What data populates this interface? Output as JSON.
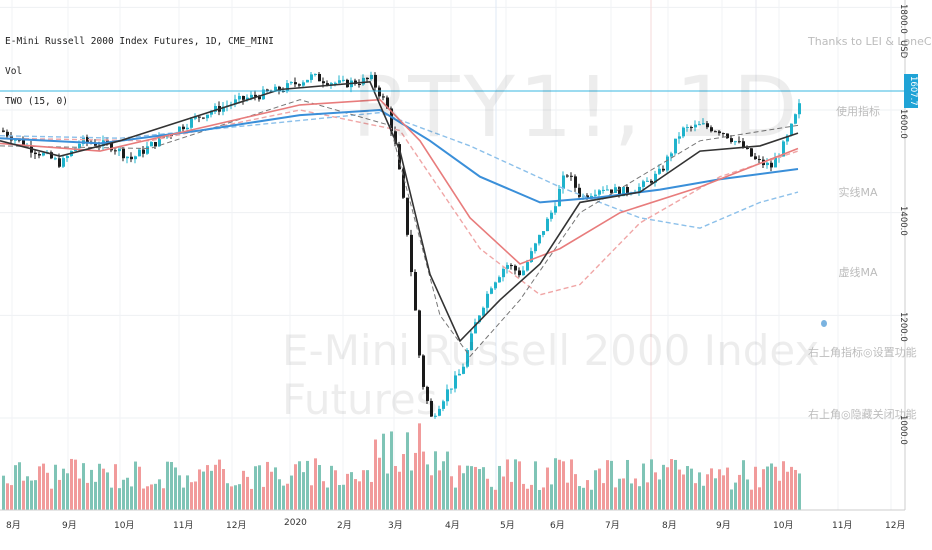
{
  "header": {
    "symbol_line": "E-Mini Russell 2000 Index Futures, 1D, CME_MINI",
    "vol_label": "Vol",
    "indicator_label": "TWO (15, 0)"
  },
  "watermark": {
    "ticker": "RTY1!, 1D",
    "name": "E-Mini Russell 2000 Index Futures"
  },
  "side_notes": [
    "Thanks to LEI & LoneCapi",
    "使用指标",
    "实线MA",
    "虚线MA",
    "右上角指标◎设置功能",
    "右上角◎隐藏关闭功能"
  ],
  "price_axis": {
    "ticks": [
      "1600.0",
      "1400.0",
      "1200.0",
      "1000.0"
    ],
    "last_price": "1607.7",
    "top_label": "USD"
  },
  "time_axis": {
    "labels": [
      "8月",
      "9月",
      "10月",
      "11月",
      "12月",
      "2020",
      "2月",
      "3月",
      "4月",
      "5月",
      "6月",
      "7月",
      "8月",
      "9月",
      "10月",
      "11月",
      "12月"
    ]
  },
  "colors": {
    "up": "#1fb3cc",
    "down": "#1a1a1a",
    "ma_red": "#e87c7c",
    "ma_blue": "#3a8fd9",
    "ma_black": "#333333",
    "vol_up": "#7fc4b6",
    "vol_down": "#f19b9b",
    "price_line": "#3ab7e2"
  },
  "chart_data": {
    "type": "candlestick",
    "ylim": [
      900,
      1800
    ],
    "x": [
      "8月",
      "9月",
      "10月",
      "11月",
      "12月",
      "2020",
      "2月",
      "3月",
      "4月",
      "5月",
      "6月",
      "7月",
      "8月",
      "9月",
      "10月"
    ],
    "close_approx": [
      1530,
      1500,
      1490,
      1560,
      1620,
      1650,
      1680,
      1410,
      1050,
      1250,
      1430,
      1400,
      1540,
      1520,
      1607.7
    ],
    "last": 1607.7
  }
}
